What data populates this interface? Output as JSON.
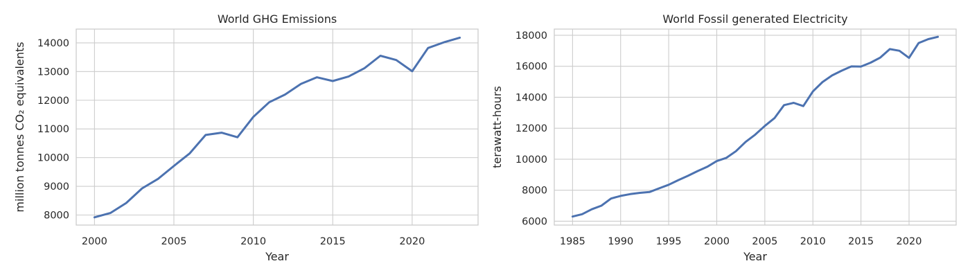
{
  "colors": {
    "series": "#4c72b0",
    "grid": "#cccccc",
    "text": "#262626"
  },
  "chart_data": [
    {
      "type": "line",
      "title": "World GHG Emissions",
      "xlabel": "Year",
      "ylabel": "million tonnes CO₂ equivalents",
      "xlim": [
        1998.85,
        2024.15
      ],
      "ylim": [
        7650,
        14480
      ],
      "x_ticks": [
        2000,
        2005,
        2010,
        2015,
        2020
      ],
      "y_ticks": [
        8000,
        9000,
        10000,
        11000,
        12000,
        13000,
        14000
      ],
      "grid": true,
      "x": [
        2000,
        2001,
        2002,
        2003,
        2004,
        2005,
        2006,
        2007,
        2008,
        2009,
        2010,
        2011,
        2012,
        2013,
        2014,
        2015,
        2016,
        2017,
        2018,
        2019,
        2020,
        2021,
        2022,
        2023
      ],
      "values": [
        7920,
        8070,
        8420,
        8930,
        9260,
        9710,
        10150,
        10790,
        10870,
        10710,
        11420,
        11930,
        12200,
        12570,
        12800,
        12670,
        12830,
        13120,
        13550,
        13400,
        13010,
        13820,
        14020,
        14180
      ]
    },
    {
      "type": "line",
      "title": "World Fossil generated Electricity",
      "xlabel": "Year",
      "ylabel": "terawatt-hours",
      "xlim": [
        1983.1,
        2024.9
      ],
      "ylim": [
        5750,
        18400
      ],
      "x_ticks": [
        1985,
        1990,
        1995,
        2000,
        2005,
        2010,
        2015,
        2020
      ],
      "y_ticks": [
        6000,
        8000,
        10000,
        12000,
        14000,
        16000,
        18000
      ],
      "grid": true,
      "x": [
        1985,
        1986,
        1987,
        1988,
        1989,
        1990,
        1991,
        1992,
        1993,
        1994,
        1995,
        1996,
        1997,
        1998,
        1999,
        2000,
        2001,
        2002,
        2003,
        2004,
        2005,
        2006,
        2007,
        2008,
        2009,
        2010,
        2011,
        2012,
        2013,
        2014,
        2015,
        2016,
        2017,
        2018,
        2019,
        2020,
        2021,
        2022,
        2023
      ],
      "values": [
        6300,
        6450,
        6770,
        7000,
        7460,
        7630,
        7750,
        7830,
        7880,
        8120,
        8350,
        8650,
        8930,
        9230,
        9510,
        9880,
        10090,
        10520,
        11120,
        11590,
        12150,
        12650,
        13490,
        13640,
        13430,
        14380,
        14980,
        15410,
        15720,
        15990,
        15980,
        16230,
        16560,
        17110,
        17000,
        16540,
        17500,
        17750,
        17900
      ]
    }
  ]
}
